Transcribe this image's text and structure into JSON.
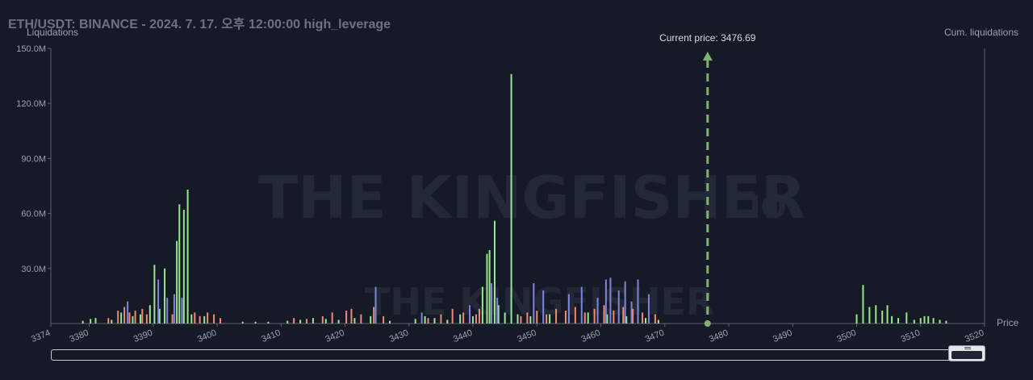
{
  "header": {
    "title": "ETH/USDT: BINANCE - 2024. 7. 17. 오후 12:00:00 high_leverage"
  },
  "watermark": {
    "brand": "THE KINGFISHER",
    "suffix": ".IO"
  },
  "colors": {
    "background": "#161a27",
    "long_liq": "#9be58f",
    "short_liq": "#f08a76",
    "cum_liq": "#7d86d9",
    "current_price_line": "#7fb26e",
    "axis": "#5b6070"
  },
  "chart_data": {
    "type": "bar",
    "title": "",
    "ylabel": "Liquidations",
    "ylabel_right": "Cum. liquidations",
    "xlabel": "Price",
    "ylim": [
      0,
      150
    ],
    "y_unit": "M",
    "yticks": [
      "150.0M",
      "120.0M",
      "90.0M",
      "60.0M",
      "30.0M"
    ],
    "ytick_values": [
      150,
      120,
      90,
      60,
      30
    ],
    "xlim": [
      3374,
      3520
    ],
    "xticks": [
      "3374",
      "3380",
      "3390",
      "3400",
      "3410",
      "3420",
      "3430",
      "3440",
      "3450",
      "3460",
      "3470",
      "3480",
      "3490",
      "3500",
      "3510",
      "3520"
    ],
    "xtick_values": [
      3374,
      3380,
      3390,
      3400,
      3410,
      3420,
      3430,
      3440,
      3450,
      3460,
      3470,
      3480,
      3490,
      3500,
      3510,
      3520
    ],
    "current_price": {
      "label": "Current price: 3476.69",
      "value": 3476.69
    },
    "series": [
      {
        "key": "green",
        "color": "#9be58f",
        "points": [
          [
            3379.0,
            1.5
          ],
          [
            3380.2,
            2.5
          ],
          [
            3381.0,
            3.0
          ],
          [
            3383.5,
            2.0
          ],
          [
            3385.0,
            6.0
          ],
          [
            3386.8,
            4.0
          ],
          [
            3388.0,
            5.0
          ],
          [
            3389.5,
            10.0
          ],
          [
            3390.2,
            32.0
          ],
          [
            3391.0,
            8.0
          ],
          [
            3391.8,
            30.0
          ],
          [
            3393.7,
            45.0
          ],
          [
            3394.1,
            65.0
          ],
          [
            3394.8,
            62.0
          ],
          [
            3395.4,
            73.0
          ],
          [
            3396.0,
            5.0
          ],
          [
            3398.0,
            4.0
          ],
          [
            3404.0,
            1.0
          ],
          [
            3406.0,
            1.0
          ],
          [
            3408.0,
            1.0
          ],
          [
            3411.0,
            1.5
          ],
          [
            3413.0,
            2.0
          ],
          [
            3415.0,
            3.0
          ],
          [
            3417.0,
            2.5
          ],
          [
            3419.0,
            2.0
          ],
          [
            3421.5,
            3.0
          ],
          [
            3424.0,
            4.0
          ],
          [
            3427.0,
            1.5
          ],
          [
            3431.0,
            2.5
          ],
          [
            3432.5,
            4.0
          ],
          [
            3434.0,
            3.0
          ],
          [
            3436.0,
            2.0
          ],
          [
            3438.0,
            5.0
          ],
          [
            3440.0,
            4.0
          ],
          [
            3441.5,
            20.0
          ],
          [
            3442.2,
            38.0
          ],
          [
            3442.6,
            40.0
          ],
          [
            3443.4,
            56.0
          ],
          [
            3444.0,
            10.0
          ],
          [
            3445.0,
            6.0
          ],
          [
            3446.0,
            136.0
          ],
          [
            3447.0,
            5.0
          ],
          [
            3449.0,
            4.0
          ],
          [
            3452.0,
            5.0
          ],
          [
            3455.0,
            4.0
          ],
          [
            3458.0,
            6.0
          ],
          [
            3461.0,
            5.0
          ],
          [
            3464.0,
            4.0
          ],
          [
            3467.0,
            3.0
          ],
          [
            3469.0,
            2.0
          ],
          [
            3500.0,
            5.0
          ],
          [
            3501.0,
            21.0
          ],
          [
            3502.0,
            9.0
          ],
          [
            3503.0,
            10.0
          ],
          [
            3504.0,
            7.0
          ],
          [
            3504.8,
            10.0
          ],
          [
            3505.5,
            4.0
          ],
          [
            3506.5,
            3.0
          ],
          [
            3507.8,
            6.0
          ],
          [
            3509.0,
            2.0
          ],
          [
            3510.0,
            3.0
          ],
          [
            3510.6,
            4.0
          ],
          [
            3511.2,
            4.0
          ],
          [
            3512.0,
            3.0
          ],
          [
            3513.0,
            2.0
          ],
          [
            3514.0,
            1.5
          ]
        ]
      },
      {
        "key": "red",
        "color": "#f08a76",
        "points": [
          [
            3383.0,
            3.0
          ],
          [
            3384.5,
            7.0
          ],
          [
            3385.5,
            9.0
          ],
          [
            3386.3,
            6.0
          ],
          [
            3387.2,
            7.0
          ],
          [
            3388.3,
            8.0
          ],
          [
            3389.0,
            5.0
          ],
          [
            3393.0,
            5.0
          ],
          [
            3396.5,
            6.0
          ],
          [
            3397.3,
            4.0
          ],
          [
            3398.5,
            6.0
          ],
          [
            3399.5,
            5.0
          ],
          [
            3400.5,
            3.0
          ],
          [
            3412.0,
            3.0
          ],
          [
            3414.0,
            2.5
          ],
          [
            3416.5,
            4.0
          ],
          [
            3418.0,
            6.0
          ],
          [
            3420.2,
            7.0
          ],
          [
            3421.0,
            8.0
          ],
          [
            3422.5,
            5.0
          ],
          [
            3424.5,
            9.0
          ],
          [
            3426.0,
            4.0
          ],
          [
            3433.0,
            3.0
          ],
          [
            3435.0,
            5.0
          ],
          [
            3436.8,
            8.0
          ],
          [
            3438.5,
            6.0
          ],
          [
            3440.5,
            5.0
          ],
          [
            3441.0,
            8.0
          ],
          [
            3447.5,
            4.0
          ],
          [
            3448.5,
            6.0
          ],
          [
            3450.0,
            7.0
          ],
          [
            3451.5,
            5.0
          ],
          [
            3453.0,
            8.0
          ],
          [
            3454.5,
            7.0
          ],
          [
            3456.0,
            9.0
          ],
          [
            3457.5,
            6.0
          ],
          [
            3459.0,
            8.0
          ],
          [
            3460.5,
            10.0
          ],
          [
            3462.0,
            7.0
          ],
          [
            3463.5,
            9.0
          ],
          [
            3465.0,
            8.0
          ],
          [
            3466.5,
            6.0
          ],
          [
            3468.5,
            5.0
          ]
        ]
      },
      {
        "key": "blue",
        "color": "#7d86d9",
        "points": [
          [
            3386.0,
            12.0
          ],
          [
            3390.8,
            24.0
          ],
          [
            3392.2,
            14.0
          ],
          [
            3393.3,
            16.0
          ],
          [
            3394.5,
            14.0
          ],
          [
            3424.8,
            20.0
          ],
          [
            3432.0,
            6.0
          ],
          [
            3439.5,
            10.0
          ],
          [
            3442.9,
            22.0
          ],
          [
            3443.8,
            14.0
          ],
          [
            3449.5,
            22.0
          ],
          [
            3451.0,
            18.0
          ],
          [
            3455.0,
            16.0
          ],
          [
            3457.0,
            20.0
          ],
          [
            3459.5,
            14.0
          ],
          [
            3460.8,
            24.0
          ],
          [
            3461.5,
            25.0
          ],
          [
            3462.8,
            18.0
          ],
          [
            3463.8,
            23.0
          ],
          [
            3464.8,
            12.0
          ],
          [
            3465.8,
            24.0
          ],
          [
            3467.5,
            16.0
          ]
        ]
      }
    ]
  }
}
